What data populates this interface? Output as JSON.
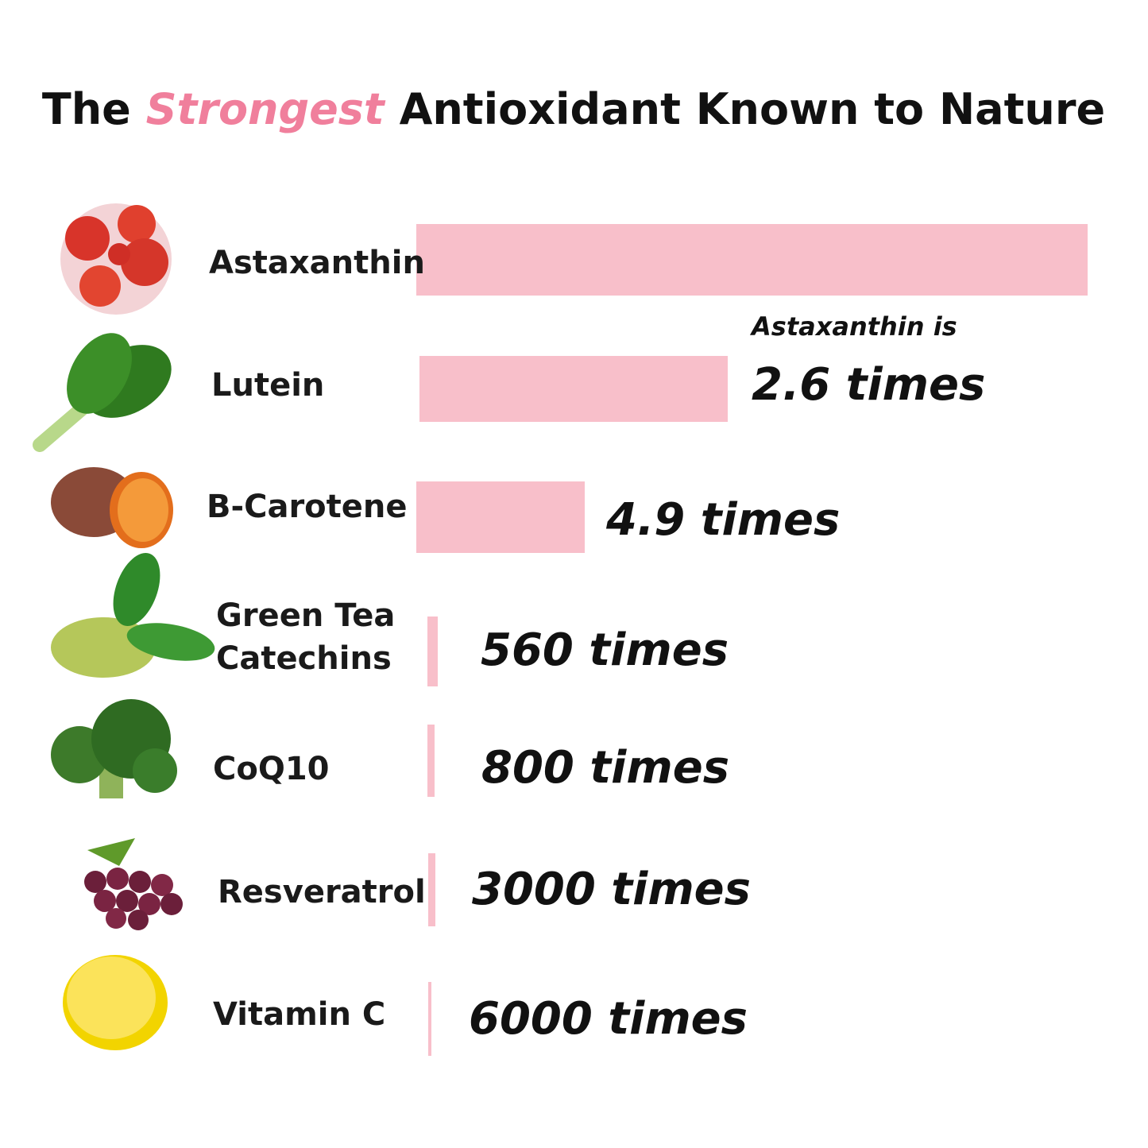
{
  "title": {
    "lead": "The",
    "highlight": "Strongest",
    "rest": "Antioxidant Known to Nature"
  },
  "note": "Astaxanthin is",
  "rows": [
    {
      "label": [
        "Astaxanthin"
      ]
    },
    {
      "label": [
        "Lutein"
      ],
      "multiplier": "2.6 times"
    },
    {
      "label": [
        "B-Carotene"
      ],
      "multiplier": "4.9 times"
    },
    {
      "label": [
        "Green Tea",
        "Catechins"
      ],
      "multiplier": "560 times"
    },
    {
      "label": [
        "CoQ10"
      ],
      "multiplier": "800 times"
    },
    {
      "label": [
        "Resveratrol"
      ],
      "multiplier": "3000 times"
    },
    {
      "label": [
        "Vitamin C"
      ],
      "multiplier": "6000 times"
    }
  ]
}
